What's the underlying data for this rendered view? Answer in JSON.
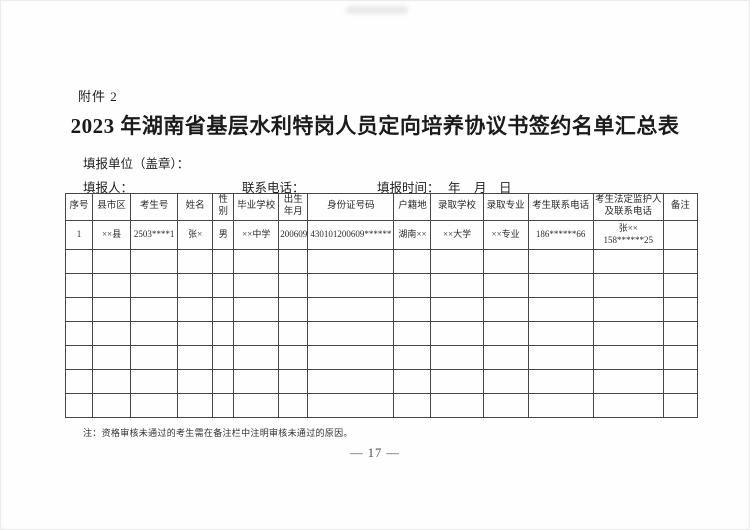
{
  "page": {
    "attachment_label": "附件 2",
    "title": "2023 年湖南省基层水利特岗人员定向培养协议书签约名单汇总表",
    "fill_unit_label": "填报单位（盖章）：",
    "filler_label": "填报人：",
    "contact_phone_label": "联系电话：",
    "fill_time_label": "填报时间：",
    "year_label": "年",
    "month_label": "月",
    "day_label": "日",
    "note": "注：资格审核未通过的考生需在备注栏中注明审核未通过的原因。",
    "page_number": "— 17 —"
  },
  "table": {
    "headers": [
      "序号",
      "县市区",
      "考生号",
      "姓名",
      "性别",
      "毕业学校",
      "出生年月",
      "身份证号码",
      "户籍地",
      "录取学校",
      "录取专业",
      "考生联系电话",
      "考生法定监护人及联系电话",
      "备注"
    ],
    "rows": [
      [
        "1",
        "××县",
        "2503****1",
        "张×",
        "男",
        "××中学",
        "200609",
        "430101200609******",
        "湖南××",
        "××大学",
        "××专业",
        "186******66",
        "张××\n158******25",
        ""
      ]
    ],
    "empty_row_count": 7
  },
  "colors": {
    "ink": "#262626",
    "table_line": "#464646",
    "page_number": "#4a4a4a"
  }
}
